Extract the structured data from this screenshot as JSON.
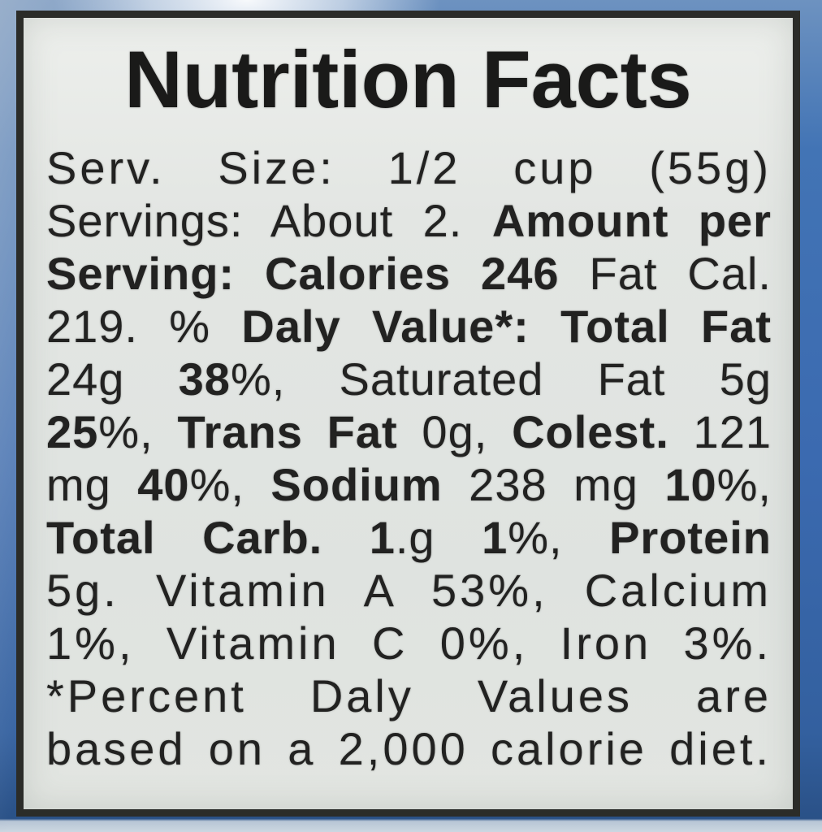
{
  "label": {
    "title": "Nutrition Facts",
    "body_lines": [
      {
        "segments": [
          {
            "text": "Serv. Size: 1/2 cup (55g)",
            "bold": false
          }
        ]
      },
      {
        "segments": [
          {
            "text": "Servings: About 2. ",
            "bold": false
          },
          {
            "text": "Amount per",
            "bold": true
          }
        ]
      },
      {
        "segments": [
          {
            "text": "Serving: Calories 246",
            "bold": true
          },
          {
            "text": " Fat Cal.",
            "bold": false
          }
        ]
      },
      {
        "segments": [
          {
            "text": "219. % ",
            "bold": false
          },
          {
            "text": "Daly Value*: Total Fat",
            "bold": true
          }
        ]
      },
      {
        "segments": [
          {
            "text": "24g ",
            "bold": false
          },
          {
            "text": "38",
            "bold": true
          },
          {
            "text": "%, Saturated Fat 5g",
            "bold": false
          }
        ]
      },
      {
        "segments": [
          {
            "text": "25",
            "bold": true
          },
          {
            "text": "%, ",
            "bold": false
          },
          {
            "text": "Trans Fat",
            "bold": true
          },
          {
            "text": " 0g, ",
            "bold": false
          },
          {
            "text": "Colest.",
            "bold": true
          },
          {
            "text": " 121",
            "bold": false
          }
        ]
      },
      {
        "segments": [
          {
            "text": "mg ",
            "bold": false
          },
          {
            "text": "40",
            "bold": true
          },
          {
            "text": "%, ",
            "bold": false
          },
          {
            "text": "Sodium",
            "bold": true
          },
          {
            "text": " 238 mg ",
            "bold": false
          },
          {
            "text": "10",
            "bold": true
          },
          {
            "text": "%,",
            "bold": false
          }
        ]
      },
      {
        "segments": [
          {
            "text": "Total Carb. 1",
            "bold": true
          },
          {
            "text": ".g ",
            "bold": false
          },
          {
            "text": "1",
            "bold": true
          },
          {
            "text": "%, ",
            "bold": false
          },
          {
            "text": "Protein",
            "bold": true
          }
        ]
      },
      {
        "segments": [
          {
            "text": "5g. Vitamin A 53%, Calcium",
            "bold": false
          }
        ]
      },
      {
        "segments": [
          {
            "text": "1%, Vitamin C 0%, Iron 3%.",
            "bold": false
          }
        ]
      },
      {
        "segments": [
          {
            "text": "*Percent Daly Values are",
            "bold": false
          }
        ]
      },
      {
        "segments": [
          {
            "text": "based on a 2,000 calorie diet.",
            "bold": false
          }
        ]
      }
    ],
    "nutrition_values": {
      "serving_size": "1/2 cup (55g)",
      "servings_per_container": "About 2",
      "calories": "246",
      "fat_calories": "219",
      "total_fat": "24g",
      "total_fat_dv": "38%",
      "saturated_fat": "5g",
      "saturated_fat_dv": "25%",
      "trans_fat": "0g",
      "cholesterol": "121 mg",
      "cholesterol_dv": "40%",
      "sodium": "238 mg",
      "sodium_dv": "10%",
      "total_carb": "1.g",
      "total_carb_dv": "1%",
      "protein": "5g",
      "vitamin_a_dv": "53%",
      "calcium_dv": "1%",
      "vitamin_c_dv": "0%",
      "iron_dv": "3%",
      "footnote_calorie_basis": "2,000"
    },
    "colors": {
      "package_blue": "#3b6ab0",
      "package_blue_dark": "#2a5187",
      "package_blue_light": "#6d92c0",
      "bottom_strip": "#ccd7e1",
      "label_background": "#e3e6e3",
      "label_border": "#2b2c29",
      "text": "#222221"
    }
  }
}
